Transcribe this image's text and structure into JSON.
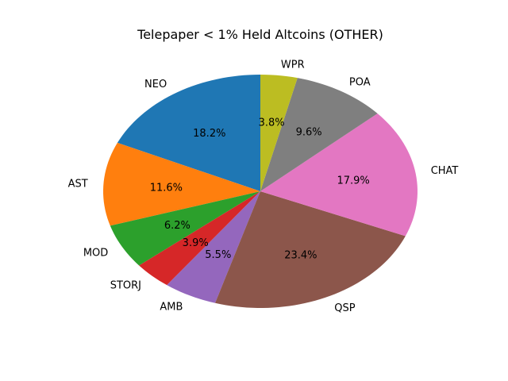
{
  "chart_data": {
    "type": "pie",
    "title": "Telepaper < 1% Held Altcoins (OTHER)",
    "start_angle_deg": 90,
    "direction": "counterclockwise",
    "slices": [
      {
        "label": "NEO",
        "value": 18.2,
        "pct_label": "18.2%",
        "color": "#1f77b4"
      },
      {
        "label": "AST",
        "value": 11.6,
        "pct_label": "11.6%",
        "color": "#ff7f0e"
      },
      {
        "label": "MOD",
        "value": 6.2,
        "pct_label": "6.2%",
        "color": "#2ca02c"
      },
      {
        "label": "STORJ",
        "value": 3.9,
        "pct_label": "3.9%",
        "color": "#d62728"
      },
      {
        "label": "AMB",
        "value": 5.5,
        "pct_label": "5.5%",
        "color": "#9467bd"
      },
      {
        "label": "QSP",
        "value": 23.4,
        "pct_label": "23.4%",
        "color": "#8c564b"
      },
      {
        "label": "CHAT",
        "value": 17.9,
        "pct_label": "17.9%",
        "color": "#e377c2"
      },
      {
        "label": "POA",
        "value": 9.6,
        "pct_label": "9.6%",
        "color": "#7f7f7f"
      },
      {
        "label": "WPR",
        "value": 3.8,
        "pct_label": "3.8%",
        "color": "#bcbd22"
      }
    ]
  }
}
